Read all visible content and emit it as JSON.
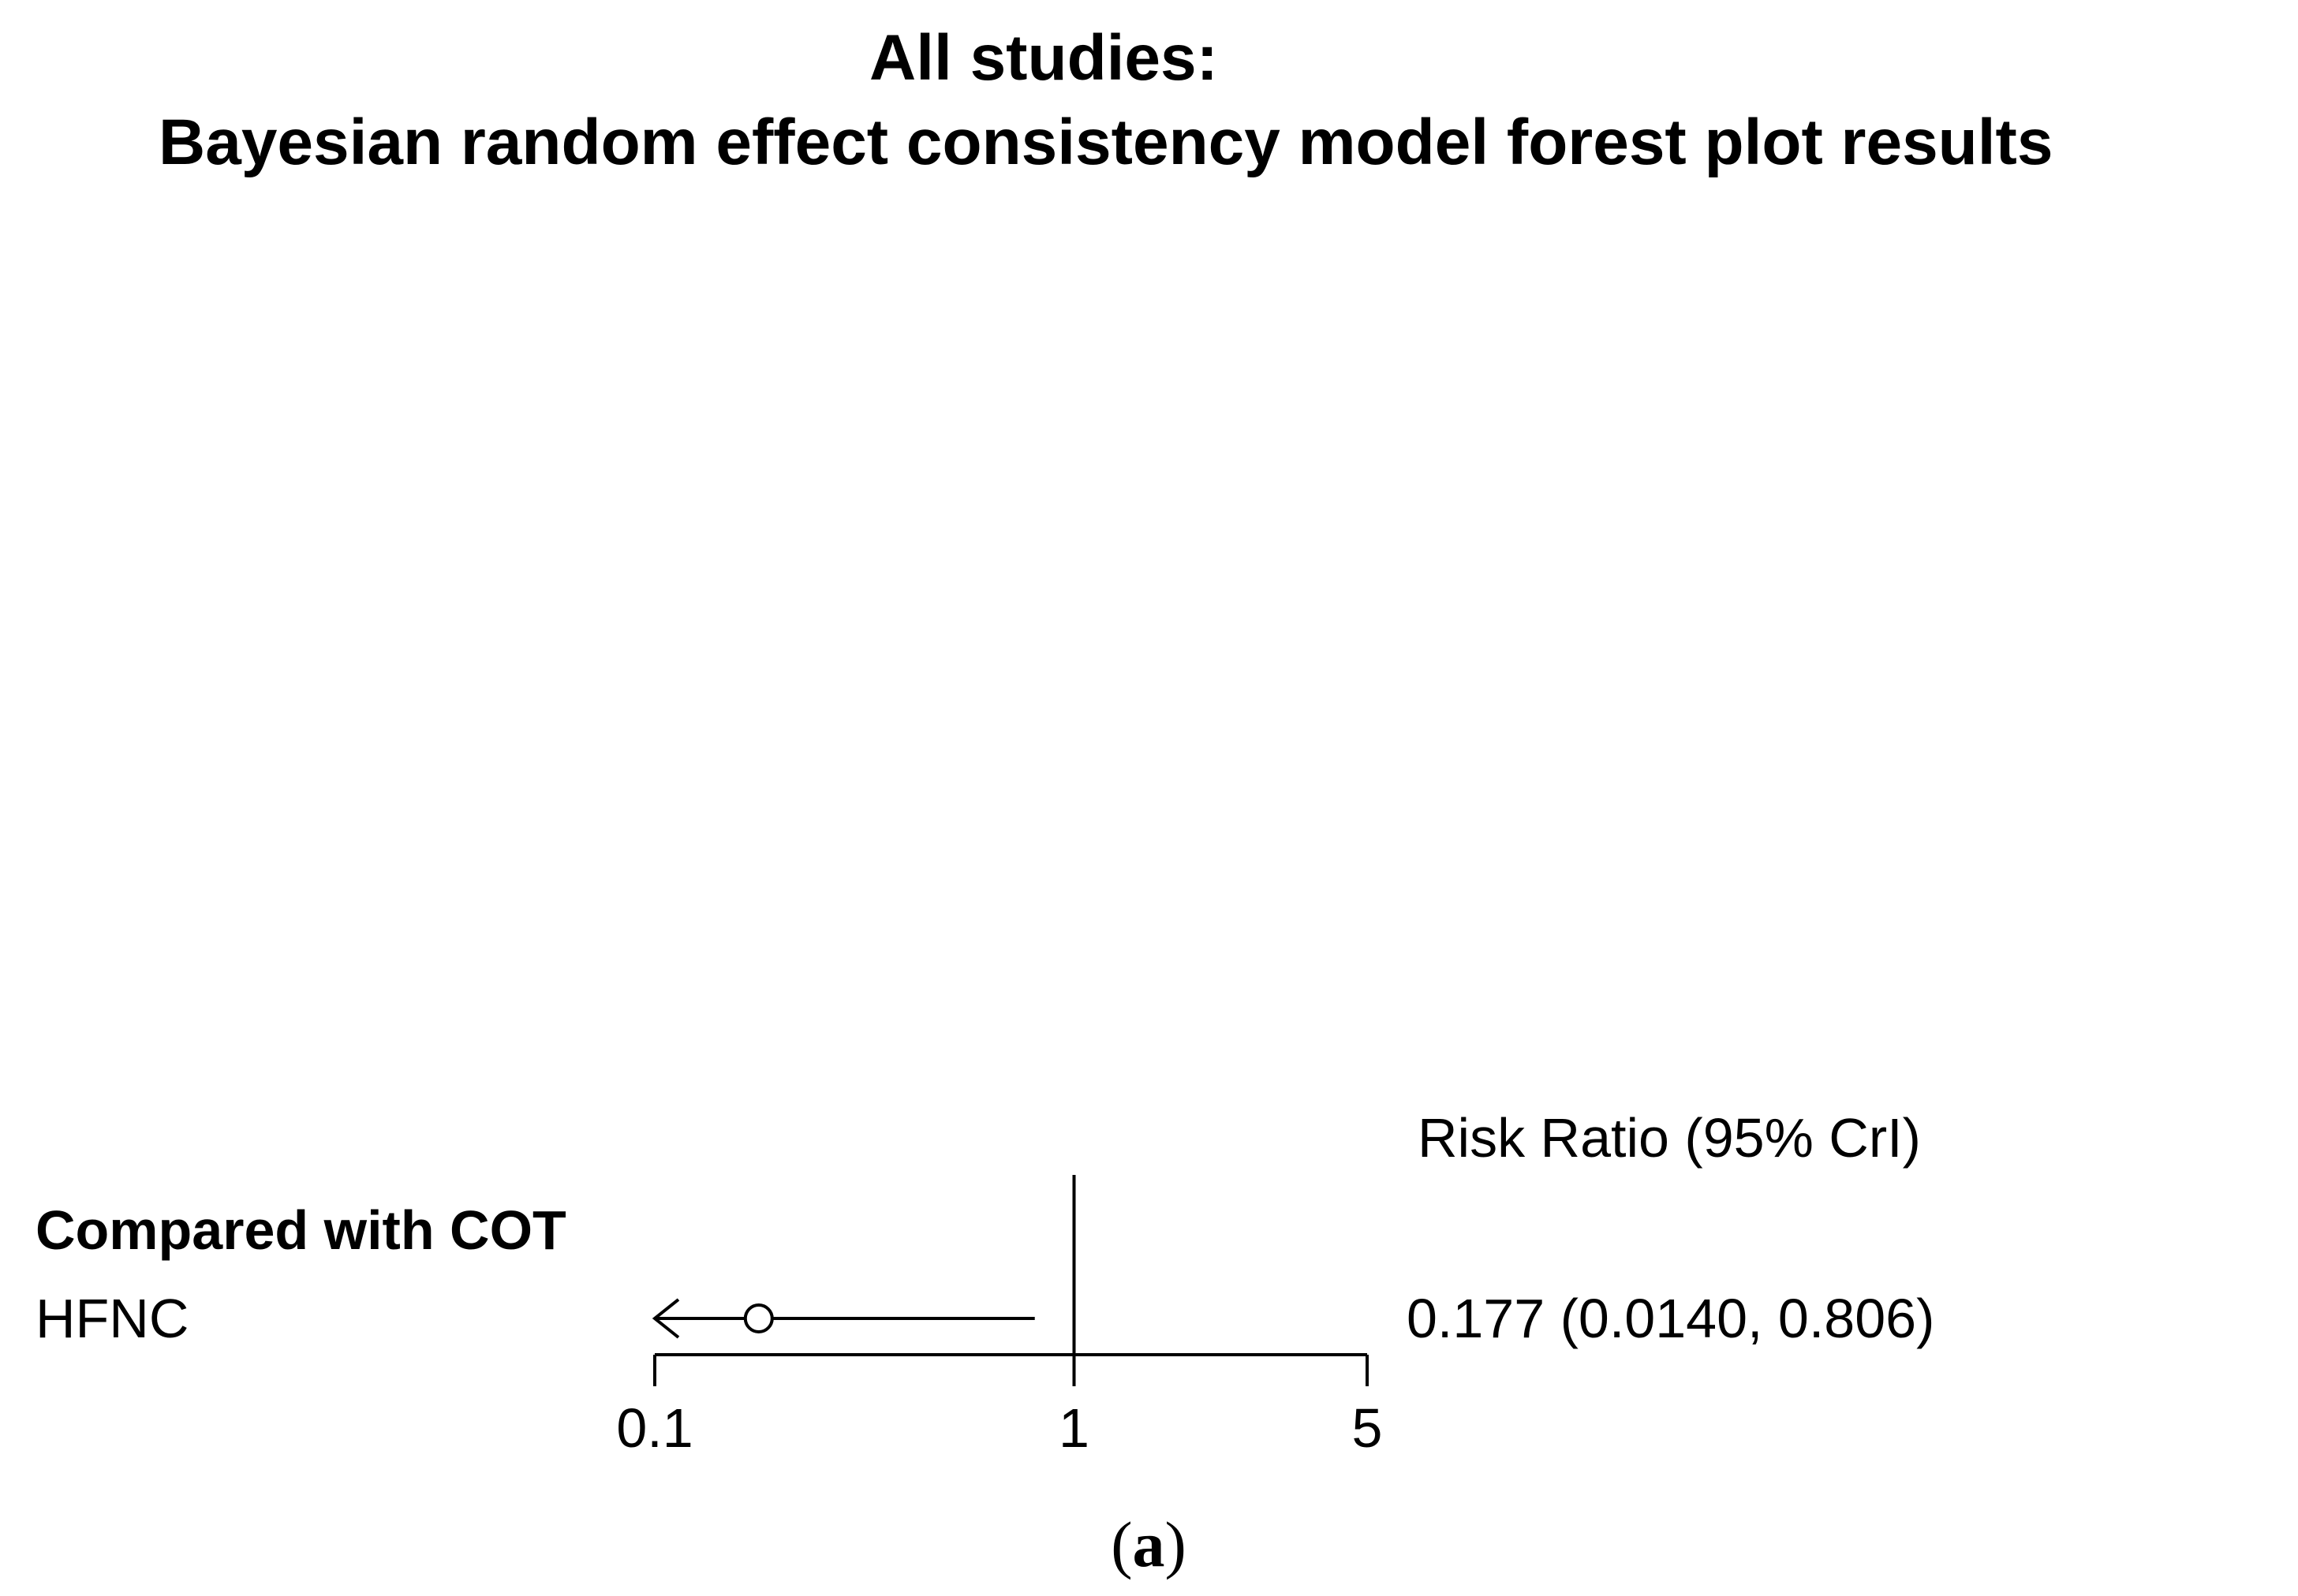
{
  "figure": {
    "title_line_1": "All studies:",
    "title_line_2": "Bayesian random effect consistency model forest plot results",
    "column_header": "Risk Ratio (95% CrI)",
    "group_label": "Compared with COT",
    "panel_open": "(",
    "panel_letter": "a",
    "panel_close": ")"
  },
  "chart_data": {
    "type": "forest",
    "title": "All studies: Bayesian random effect consistency model forest plot results",
    "scale": "log",
    "xlim": [
      0.1,
      5
    ],
    "xticks": [
      {
        "value": 0.1,
        "label": "0.1"
      },
      {
        "value": 1,
        "label": "1"
      },
      {
        "value": 5,
        "label": "5"
      }
    ],
    "reference_line": 1,
    "rows": [
      {
        "group": "Compared with COT",
        "label": "HFNC",
        "estimate": 0.177,
        "lower": 0.014,
        "upper": 0.806,
        "estimate_text": "0.177 (0.0140, 0.806)",
        "lower_truncated": true
      }
    ]
  }
}
